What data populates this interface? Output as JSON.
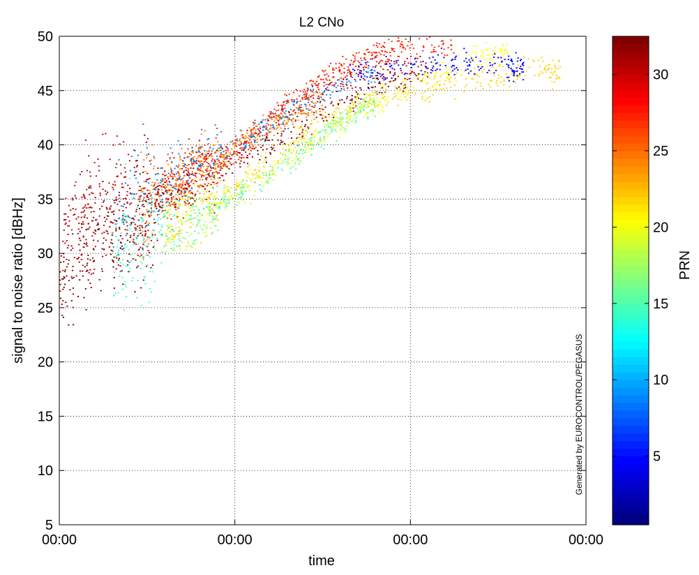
{
  "chart_data": {
    "type": "scatter",
    "title": "L2 CNo",
    "xlabel": "time",
    "ylabel": "signal to noise ratio [dBHz]",
    "x_tick_labels": [
      "00:00",
      "00:00",
      "00:00",
      "00:00"
    ],
    "ylim": [
      5,
      50
    ],
    "y_ticks": [
      5,
      10,
      15,
      20,
      25,
      30,
      35,
      40,
      45,
      50
    ],
    "grid": true,
    "colormap": "jet",
    "colorbar": {
      "label": "PRN",
      "range": [
        1,
        32
      ],
      "ticks": [
        5,
        10,
        15,
        20,
        25,
        30
      ]
    },
    "watermark": "Generated by EUROCONTROL/PEGASUS",
    "series": [
      {
        "prn": 32,
        "color": "#7f0000",
        "x": [
          0.0,
          0.05,
          0.1,
          0.15,
          0.2,
          0.3,
          0.4,
          0.5,
          0.6,
          0.7
        ],
        "y": [
          28.0,
          31.0,
          32.0,
          33.0,
          35.0,
          37.5,
          40.0,
          43.0,
          45.5,
          46.7
        ]
      },
      {
        "prn": 30,
        "color": "#c00000",
        "x": [
          0.0,
          0.05,
          0.1,
          0.15,
          0.2,
          0.3,
          0.4,
          0.5,
          0.6,
          0.7
        ],
        "y": [
          30.0,
          34.0,
          35.0,
          34.0,
          36.0,
          38.5,
          42.0,
          45.0,
          47.0,
          47.3
        ]
      },
      {
        "prn": 28,
        "color": "#ff2000",
        "x": [
          0.2,
          0.25,
          0.3,
          0.35,
          0.4,
          0.45,
          0.5,
          0.55,
          0.6,
          0.65,
          0.75
        ],
        "y": [
          36.0,
          37.5,
          38.5,
          40.0,
          42.5,
          44.5,
          46.0,
          47.5,
          48.5,
          49.0,
          49.5
        ]
      },
      {
        "prn": 25,
        "color": "#ff8000",
        "x": [
          0.15,
          0.2,
          0.25,
          0.3,
          0.35,
          0.4,
          0.45,
          0.5
        ],
        "y": [
          34.0,
          36.0,
          37.5,
          38.5,
          40.5,
          41.5,
          43.0,
          44.0
        ]
      },
      {
        "prn": 21,
        "color": "#ffd000",
        "x": [
          0.2,
          0.3,
          0.4,
          0.5,
          0.6,
          0.7,
          0.8,
          0.9,
          0.95
        ],
        "y": [
          32.0,
          35.0,
          38.5,
          42.5,
          44.5,
          45.5,
          46.0,
          47.0,
          46.8
        ]
      },
      {
        "prn": 19,
        "color": "#ffff00",
        "x": [
          0.2,
          0.3,
          0.4,
          0.5,
          0.6,
          0.7,
          0.8,
          0.85
        ],
        "y": [
          33.0,
          35.0,
          38.0,
          41.0,
          44.0,
          46.0,
          48.0,
          49.0
        ]
      },
      {
        "prn": 17,
        "color": "#c0ff40",
        "x": [
          0.2,
          0.3,
          0.4,
          0.5,
          0.55,
          0.6
        ],
        "y": [
          32.0,
          34.0,
          37.5,
          41.0,
          43.0,
          44.5
        ]
      },
      {
        "prn": 13,
        "color": "#40ffc0",
        "x": [
          0.1,
          0.15,
          0.2,
          0.3,
          0.4,
          0.5,
          0.6
        ],
        "y": [
          30.0,
          31.0,
          32.0,
          34.5,
          37.5,
          41.0,
          44.0
        ]
      },
      {
        "prn": 8,
        "color": "#0080ff",
        "x": [
          0.1,
          0.2,
          0.3,
          0.4,
          0.5,
          0.6
        ],
        "y": [
          33.0,
          37.0,
          39.5,
          42.0,
          45.0,
          47.0
        ]
      },
      {
        "prn": 4,
        "color": "#0000ff",
        "x": [
          0.55,
          0.65,
          0.75,
          0.85,
          0.88
        ],
        "y": [
          46.5,
          47.2,
          47.4,
          47.3,
          47.1
        ]
      }
    ]
  }
}
